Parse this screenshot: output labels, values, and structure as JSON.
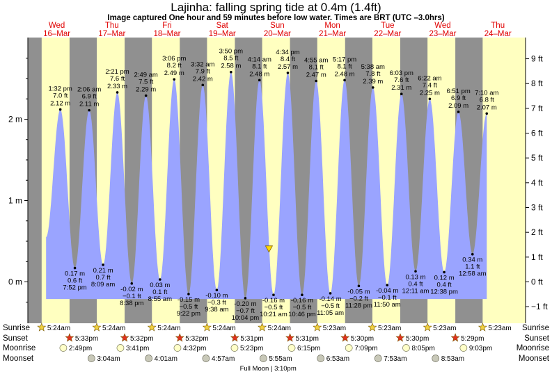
{
  "header": {
    "title": "Lajinha: falling  spring tide at 0.4m (1.4ft)",
    "subtitle": "Image captured One hour and 59 minutes before low water. Times are BRT (UTC –3.0hrs)"
  },
  "colors": {
    "day": "#ffffc0",
    "night": "#909090",
    "tide": "#9aa4ff",
    "day_label": "#e00000",
    "marker": "#ffd700"
  },
  "chart_data": {
    "type": "area",
    "title": "Lajinha: falling  spring tide at 0.4m (1.4ft)",
    "subtitle": "Image captured One hour and 59 minutes before low water. Times are BRT (UTC –3.0hrs)",
    "x_range": [
      "2024-03-16 00:00",
      "2024-03-24 18:00"
    ],
    "ylim_m": [
      -0.48,
      2.88
    ],
    "y_ticks_m": [
      "0 m",
      "1 m",
      "2 m"
    ],
    "y_ticks_ft": [
      "−1 ft",
      "0 ft",
      "1 ft",
      "2 ft",
      "3 ft",
      "4 ft",
      "5 ft",
      "6 ft",
      "7 ft",
      "8 ft",
      "9 ft"
    ],
    "days": [
      {
        "name": "Wed",
        "date": "16–Mar"
      },
      {
        "name": "Thu",
        "date": "17–Mar"
      },
      {
        "name": "Fri",
        "date": "18–Mar"
      },
      {
        "name": "Sat",
        "date": "19–Mar"
      },
      {
        "name": "Sun",
        "date": "20–Mar"
      },
      {
        "name": "Mon",
        "date": "21–Mar"
      },
      {
        "name": "Tue",
        "date": "22–Mar"
      },
      {
        "name": "Wed",
        "date": "23–Mar"
      },
      {
        "name": "Thu",
        "date": "24–Mar"
      }
    ],
    "extremes": [
      {
        "type": "high",
        "day": 0,
        "time": "1:32 pm",
        "height_m": 2.12,
        "height_ft": "7.0 ft"
      },
      {
        "type": "low",
        "day": 0,
        "time": "7:52 pm",
        "height_m": 0.17,
        "height_ft": "0.6 ft"
      },
      {
        "type": "high",
        "day": 1,
        "time": "2:06 am",
        "height_m": 2.11,
        "height_ft": "6.9 ft"
      },
      {
        "type": "low",
        "day": 1,
        "time": "8:09 am",
        "height_m": 0.21,
        "height_ft": "0.7 ft"
      },
      {
        "type": "high",
        "day": 1,
        "time": "2:21 pm",
        "height_m": 2.33,
        "height_ft": "7.6 ft"
      },
      {
        "type": "low",
        "day": 1,
        "time": "8:38 pm",
        "height_m": -0.02,
        "height_ft": "−0.1 ft"
      },
      {
        "type": "high",
        "day": 2,
        "time": "2:49 am",
        "height_m": 2.29,
        "height_ft": "7.5 ft"
      },
      {
        "type": "low",
        "day": 2,
        "time": "8:55 am",
        "height_m": 0.03,
        "height_ft": "0.1 ft"
      },
      {
        "type": "high",
        "day": 2,
        "time": "3:06 pm",
        "height_m": 2.49,
        "height_ft": "8.2 ft"
      },
      {
        "type": "low",
        "day": 2,
        "time": "9:22 pm",
        "height_m": -0.15,
        "height_ft": "−0.5 ft"
      },
      {
        "type": "high",
        "day": 3,
        "time": "3:32 am",
        "height_m": 2.42,
        "height_ft": "7.9 ft"
      },
      {
        "type": "low",
        "day": 3,
        "time": "9:38 am",
        "height_m": -0.1,
        "height_ft": "−0.3 ft"
      },
      {
        "type": "high",
        "day": 3,
        "time": "3:50 pm",
        "height_m": 2.58,
        "height_ft": "8.5 ft"
      },
      {
        "type": "low",
        "day": 3,
        "time": "10:04 pm",
        "height_m": -0.2,
        "height_ft": "−0.7 ft"
      },
      {
        "type": "high",
        "day": 4,
        "time": "4:14 am",
        "height_m": 2.48,
        "height_ft": "8.1 ft"
      },
      {
        "type": "low",
        "day": 4,
        "time": "10:21 am",
        "height_m": -0.16,
        "height_ft": "−0.5 ft"
      },
      {
        "type": "high",
        "day": 4,
        "time": "4:34 pm",
        "height_m": 2.57,
        "height_ft": "8.4 ft"
      },
      {
        "type": "low",
        "day": 4,
        "time": "10:46 pm",
        "height_m": -0.16,
        "height_ft": "−0.5 ft"
      },
      {
        "type": "high",
        "day": 5,
        "time": "4:55 am",
        "height_m": 2.47,
        "height_ft": "8.1 ft"
      },
      {
        "type": "low",
        "day": 5,
        "time": "11:05 am",
        "height_m": -0.14,
        "height_ft": "−0.5 ft"
      },
      {
        "type": "high",
        "day": 5,
        "time": "5:17 pm",
        "height_m": 2.48,
        "height_ft": "8.1 ft"
      },
      {
        "type": "low",
        "day": 5,
        "time": "11:28 pm",
        "height_m": -0.05,
        "height_ft": "−0.2 ft"
      },
      {
        "type": "high",
        "day": 6,
        "time": "5:38 am",
        "height_m": 2.39,
        "height_ft": "7.8 ft"
      },
      {
        "type": "low",
        "day": 6,
        "time": "11:50 am",
        "height_m": -0.04,
        "height_ft": "−0.1 ft"
      },
      {
        "type": "high",
        "day": 6,
        "time": "6:03 pm",
        "height_m": 2.31,
        "height_ft": "7.6 ft"
      },
      {
        "type": "low",
        "day": 7,
        "time": "12:11 am",
        "height_m": 0.13,
        "height_ft": "0.4 ft"
      },
      {
        "type": "high",
        "day": 7,
        "time": "6:22 am",
        "height_m": 2.25,
        "height_ft": "7.4 ft"
      },
      {
        "type": "low",
        "day": 7,
        "time": "12:38 pm",
        "height_m": 0.12,
        "height_ft": "0.4 ft"
      },
      {
        "type": "high",
        "day": 7,
        "time": "6:51 pm",
        "height_m": 2.09,
        "height_ft": "6.9 ft"
      },
      {
        "type": "low",
        "day": 8,
        "time": "12:58 am",
        "height_m": 0.34,
        "height_ft": "1.1 ft"
      },
      {
        "type": "high",
        "day": 8,
        "time": "7:10 am",
        "height_m": 2.07,
        "height_ft": "6.8 ft"
      }
    ],
    "current": {
      "day": 4,
      "time": "8:22 am",
      "height_m": 0.4
    },
    "sunrise": [
      "5:24am",
      "5:24am",
      "5:24am",
      "5:24am",
      "5:24am",
      "5:23am",
      "5:23am",
      "5:23am",
      "5:23am"
    ],
    "sunset": [
      "5:33pm",
      "5:32pm",
      "5:32pm",
      "5:31pm",
      "5:31pm",
      "5:30pm",
      "5:30pm",
      "5:29pm"
    ],
    "moonrise": [
      "2:49pm",
      "3:41pm",
      "4:32pm",
      "5:23pm",
      "6:15pm",
      "7:09pm",
      "8:05pm",
      "9:03pm"
    ],
    "moonset": [
      "3:04am",
      "4:01am",
      "4:57am",
      "5:55am",
      "6:53am",
      "7:53am",
      "8:53am"
    ],
    "moonset_days": [
      1,
      2,
      3,
      4,
      5,
      6,
      7
    ],
    "full_moon": "Full Moon | 3:10pm",
    "row_labels": {
      "sunrise": "Sunrise",
      "sunset": "Sunset",
      "moonrise": "Moonrise",
      "moonset": "Moonset"
    }
  }
}
